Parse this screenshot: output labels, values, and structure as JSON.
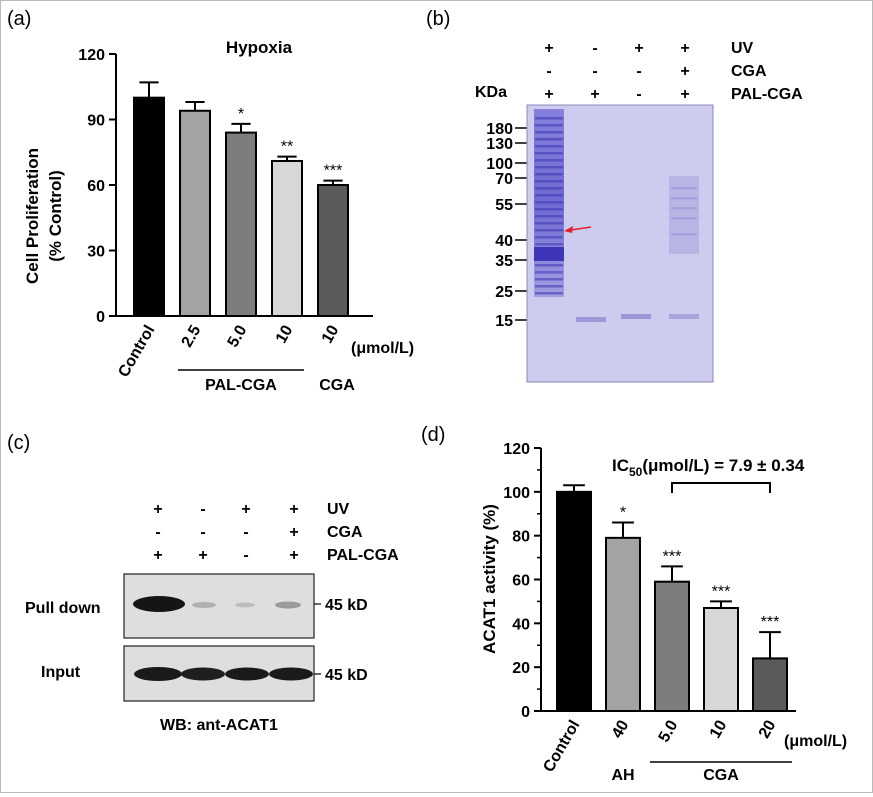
{
  "colors": {
    "black": "#000000",
    "dark_gray": "#5a5a5a",
    "mid_gray": "#7d7d7d",
    "light_gray": "#a3a3a3",
    "pale_gray": "#d7d7d7",
    "gel_bg": "#cdcbee",
    "gel_band": "#5b55c8",
    "arrow_red": "#e0202a",
    "blot_bg": "#dedede"
  },
  "panel_labels": {
    "a": "(a)",
    "b": "(b)",
    "c": "(c)",
    "d": "(d)"
  },
  "panel_b": {
    "kda_label": "KDa",
    "markers": [
      "180",
      "130",
      "100",
      "70",
      "55",
      "40",
      "35",
      "25",
      "15"
    ],
    "rows": [
      {
        "label": "UV",
        "signs": [
          "+",
          "-",
          "+",
          "+"
        ]
      },
      {
        "label": "CGA",
        "signs": [
          "-",
          "-",
          "-",
          "+"
        ]
      },
      {
        "label": "PAL-CGA",
        "signs": [
          "+",
          "+",
          "-",
          "+"
        ]
      }
    ],
    "arrow": "red-arrow-icon"
  },
  "panel_c": {
    "rows": [
      {
        "label": "UV",
        "signs": [
          "+",
          "-",
          "+",
          "+"
        ]
      },
      {
        "label": "CGA",
        "signs": [
          "-",
          "-",
          "-",
          "+"
        ]
      },
      {
        "label": "PAL-CGA",
        "signs": [
          "+",
          "+",
          "-",
          "+"
        ]
      }
    ],
    "pull_down_label": "Pull down",
    "input_label": "Input",
    "size_pull": "45 kD",
    "size_input": "45 kD",
    "wb_label": "WB: ant-ACAT1"
  },
  "chart_data": [
    {
      "id": "a",
      "type": "bar",
      "title": "Hypoxia",
      "xlabel": "",
      "ylabel": "Cell Proliferation\n(% Control)",
      "ylabel_lines": [
        "Cell Proliferation",
        "(% Control)"
      ],
      "ylim": [
        0,
        120
      ],
      "yticks": [
        "0",
        "30",
        "60",
        "90",
        "120"
      ],
      "categories": [
        "Control",
        "2.5",
        "5.0",
        "10",
        "10"
      ],
      "unit_label": "(μmol/L)",
      "values": [
        100,
        94,
        84,
        71,
        60
      ],
      "errors": [
        7,
        4,
        4,
        2,
        2
      ],
      "significance": [
        "",
        "",
        "*",
        "**",
        "***"
      ],
      "colors": [
        "#000000",
        "#a3a3a3",
        "#7d7d7d",
        "#d7d7d7",
        "#5a5a5a"
      ],
      "groups": [
        {
          "label": "PAL-CGA",
          "from": 1,
          "to": 3
        },
        {
          "label": "CGA",
          "from": 4,
          "to": 4
        }
      ],
      "grid": false,
      "legend": "none"
    },
    {
      "id": "d",
      "type": "bar",
      "title": "",
      "xlabel": "",
      "ylabel": "ACAT1 activity (%)",
      "ylim": [
        0,
        120
      ],
      "yticks": [
        "0",
        "20",
        "40",
        "60",
        "80",
        "100",
        "120"
      ],
      "categories": [
        "Control",
        "40",
        "5.0",
        "10",
        "20"
      ],
      "unit_label": "(μmol/L)",
      "values": [
        100,
        79,
        59,
        47,
        24
      ],
      "errors": [
        3,
        7,
        7,
        3,
        12
      ],
      "significance": [
        "",
        "*",
        "***",
        "***",
        "***"
      ],
      "colors": [
        "#000000",
        "#a3a3a3",
        "#7d7d7d",
        "#d7d7d7",
        "#5a5a5a"
      ],
      "groups": [
        {
          "label": "AH",
          "from": 1,
          "to": 1
        },
        {
          "label": "CGA",
          "from": 2,
          "to": 4
        }
      ],
      "annotation": {
        "text_main": "IC",
        "text_sub": "50",
        "text_rest": "(μmol/L) = 7.9 ± 0.34",
        "from": 2,
        "to": 4
      },
      "grid": false,
      "legend": "none"
    }
  ]
}
